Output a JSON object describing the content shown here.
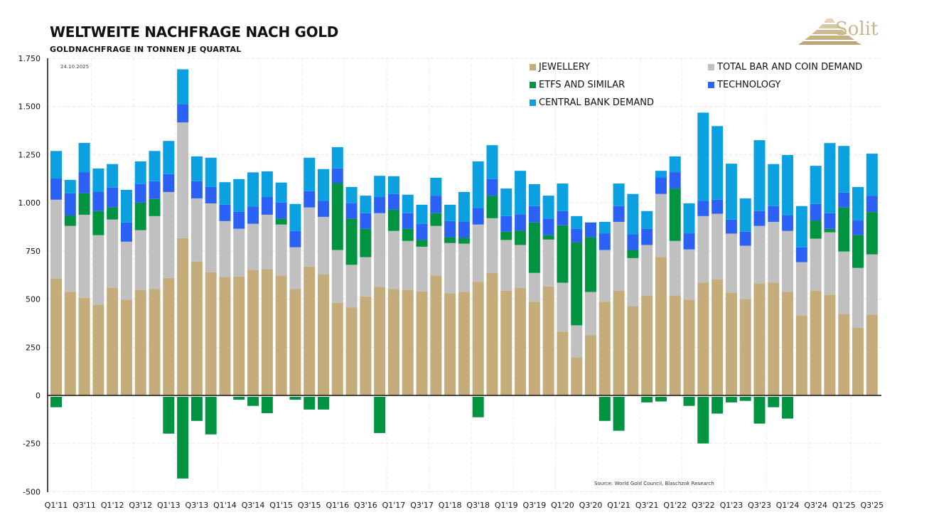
{
  "header": {
    "title": "WELTWEITE NACHFRAGE NACH GOLD",
    "subtitle": "GOLDNACHFRAGE IN TONNEN JE QUARTAL",
    "date": "24.10.2025",
    "logo_text": "Solit"
  },
  "source": "Source: World Gold Council, Blaschzok Research",
  "colors": {
    "jewellery": "#c4ad7a",
    "bar_coin": "#c0c0c0",
    "etfs": "#009440",
    "technology": "#2b62f5",
    "central_bank": "#0ba0e0"
  },
  "chart_data": {
    "type": "bar",
    "stacked": true,
    "title": "WELTWEITE NACHFRAGE NACH GOLD",
    "subtitle": "GOLDNACHFRAGE IN TONNEN JE QUARTAL",
    "ylim": [
      -500,
      1750
    ],
    "yticks": [
      1750,
      1500,
      1250,
      1000,
      750,
      500,
      250,
      0,
      -250,
      -500
    ],
    "ytick_labels": [
      "1.750",
      "1.500",
      "1.250",
      "1.000",
      "750",
      "500",
      "250",
      "0",
      "-250",
      "-500"
    ],
    "grid": true,
    "legend_position": "top-right",
    "categories": [
      "Q1'11",
      "Q2'11",
      "Q3'11",
      "Q4'11",
      "Q1'12",
      "Q2'12",
      "Q3'12",
      "Q4'12",
      "Q1'13",
      "Q2'13",
      "Q3'13",
      "Q4'13",
      "Q1'14",
      "Q2'14",
      "Q3'14",
      "Q4'14",
      "Q1'15",
      "Q2'15",
      "Q3'15",
      "Q4'15",
      "Q1'16",
      "Q2'16",
      "Q3'16",
      "Q4'16",
      "Q1'17",
      "Q2'17",
      "Q3'17",
      "Q4'17",
      "Q1'18",
      "Q2'18",
      "Q3'18",
      "Q4'18",
      "Q1'19",
      "Q2'19",
      "Q3'19",
      "Q4'19",
      "Q1'20",
      "Q2'20",
      "Q3'20",
      "Q4'20",
      "Q1'21",
      "Q2'21",
      "Q3'21",
      "Q4'21",
      "Q1'22",
      "Q2'22",
      "Q3'22",
      "Q4'22",
      "Q1'23",
      "Q2'23",
      "Q3'23",
      "Q4'23",
      "Q1'24",
      "Q2'24",
      "Q3'24",
      "Q4'24",
      "Q1'25",
      "Q2'25",
      "Q3'25"
    ],
    "xtick_labels": [
      "Q1'11",
      "Q3'11",
      "Q1'12",
      "Q3'12",
      "Q1'13",
      "Q3'13",
      "Q1'14",
      "Q3'14",
      "Q1'15",
      "Q3'15",
      "Q1'16",
      "Q3'16",
      "Q1'17",
      "Q3'17",
      "Q1'18",
      "Q3'18",
      "Q1'19",
      "Q3'19",
      "Q1'20",
      "Q3'20",
      "Q1'21",
      "Q3'21",
      "Q1'22",
      "Q3'22",
      "Q1'23",
      "Q3'23",
      "Q1'24",
      "Q3'24",
      "Q1'25",
      "Q3'25"
    ],
    "series": [
      {
        "name": "JEWELLERY",
        "key": "jewellery",
        "values": [
          607,
          537,
          507,
          471,
          559,
          497,
          549,
          552,
          610,
          817,
          695,
          640,
          615,
          617,
          652,
          655,
          622,
          552,
          669,
          629,
          481,
          456,
          514,
          563,
          552,
          549,
          540,
          622,
          530,
          537,
          589,
          636,
          544,
          559,
          486,
          566,
          331,
          198,
          312,
          486,
          544,
          463,
          519,
          718,
          519,
          497,
          585,
          603,
          533,
          500,
          582,
          585,
          537,
          415,
          544,
          523,
          423,
          352,
          420
        ]
      },
      {
        "name": "TOTAL BAR AND COIN DEMAND",
        "key": "bar_coin",
        "values": [
          409,
          343,
          431,
          361,
          354,
          301,
          309,
          379,
          446,
          600,
          328,
          357,
          290,
          248,
          239,
          283,
          265,
          217,
          307,
          298,
          274,
          222,
          204,
          383,
          302,
          253,
          232,
          258,
          261,
          251,
          298,
          284,
          263,
          222,
          150,
          243,
          254,
          166,
          225,
          269,
          357,
          250,
          262,
          328,
          283,
          261,
          346,
          340,
          307,
          277,
          298,
          316,
          317,
          277,
          270,
          324,
          324,
          310,
          312
        ]
      },
      {
        "name": "ETFS AND SIMILAR",
        "key": "etfs",
        "values": [
          -54,
          54,
          112,
          125,
          63,
          0,
          143,
          89,
          -191,
          -424,
          -125,
          -195,
          0,
          -15,
          -47,
          -85,
          31,
          -15,
          -66,
          -66,
          347,
          239,
          147,
          -188,
          110,
          63,
          35,
          66,
          30,
          30,
          -106,
          117,
          43,
          74,
          262,
          23,
          298,
          430,
          284,
          -125,
          -176,
          42,
          -29,
          -24,
          272,
          -47,
          -242,
          -87,
          -29,
          -21,
          -139,
          -54,
          -113,
          0,
          94,
          18,
          229,
          170,
          220
        ]
      },
      {
        "name": "TECHNOLOGY",
        "key": "technology",
        "values": [
          110,
          115,
          109,
          99,
          103,
          100,
          96,
          92,
          93,
          96,
          89,
          85,
          85,
          88,
          89,
          92,
          83,
          85,
          84,
          84,
          76,
          80,
          81,
          84,
          82,
          81,
          84,
          91,
          84,
          83,
          84,
          86,
          81,
          85,
          85,
          86,
          74,
          71,
          77,
          85,
          82,
          81,
          84,
          87,
          85,
          82,
          80,
          73,
          73,
          73,
          77,
          82,
          80,
          77,
          86,
          81,
          77,
          76,
          85
        ]
      },
      {
        "name": "CENTRAL BANK DEMAND",
        "key": "central_bank",
        "values": [
          143,
          70,
          152,
          122,
          122,
          169,
          118,
          157,
          172,
          180,
          129,
          152,
          117,
          170,
          178,
          133,
          104,
          140,
          174,
          164,
          111,
          85,
          91,
          110,
          92,
          96,
          99,
          93,
          85,
          155,
          244,
          176,
          143,
          226,
          114,
          119,
          143,
          66,
          0,
          61,
          117,
          210,
          92,
          33,
          82,
          157,
          457,
          382,
          290,
          173,
          368,
          218,
          314,
          214,
          198,
          364,
          242,
          174,
          218
        ]
      }
    ]
  },
  "legend": [
    {
      "label": "JEWELLERY",
      "key": "jewellery"
    },
    {
      "label": "TOTAL BAR AND COIN DEMAND",
      "key": "bar_coin"
    },
    {
      "label": "ETFS AND SIMILAR",
      "key": "etfs"
    },
    {
      "label": "TECHNOLOGY",
      "key": "technology"
    },
    {
      "label": "CENTRAL BANK DEMAND",
      "key": "central_bank"
    }
  ]
}
